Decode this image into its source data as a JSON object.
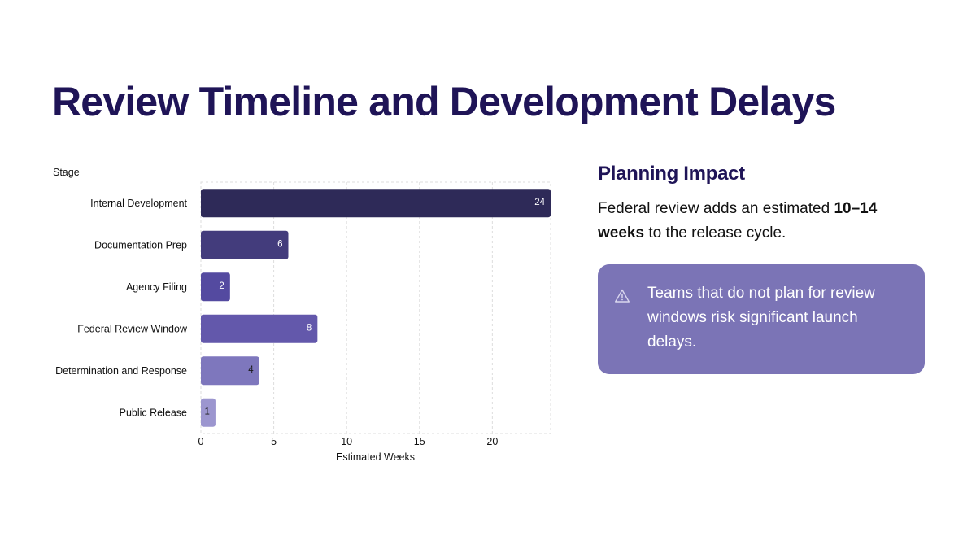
{
  "page": {
    "title": "Review Timeline and Development Delays"
  },
  "side_panel": {
    "heading": "Planning Impact",
    "text_before": "Federal review adds an estimated ",
    "text_bold": "10–14 weeks",
    "text_after": " to the release cycle.",
    "callout_icon": "warning-triangle-icon",
    "callout_text": "Teams that do not plan for review windows risk significant launch delays.",
    "callout_color": "#7b74b6"
  },
  "chart_data": {
    "type": "bar",
    "orientation": "horizontal",
    "y_axis_label": "Stage",
    "x_axis_label": "Estimated Weeks",
    "categories": [
      "Internal Development",
      "Documentation Prep",
      "Agency Filing",
      "Federal Review Window",
      "Determination and Response",
      "Public Release"
    ],
    "values": [
      24,
      6,
      2,
      8,
      4,
      1
    ],
    "bar_colors": [
      "#2e2a58",
      "#433c7c",
      "#544aa0",
      "#6358ab",
      "#7e77bd",
      "#9c96cf"
    ],
    "label_colors": [
      "#ffffff",
      "#ffffff",
      "#ffffff",
      "#ffffff",
      "#1a1a1a",
      "#1a1a1a"
    ],
    "x_ticks": [
      0,
      5,
      10,
      15,
      20
    ],
    "xlim": [
      0,
      24
    ],
    "grid": true,
    "legend": "none"
  }
}
